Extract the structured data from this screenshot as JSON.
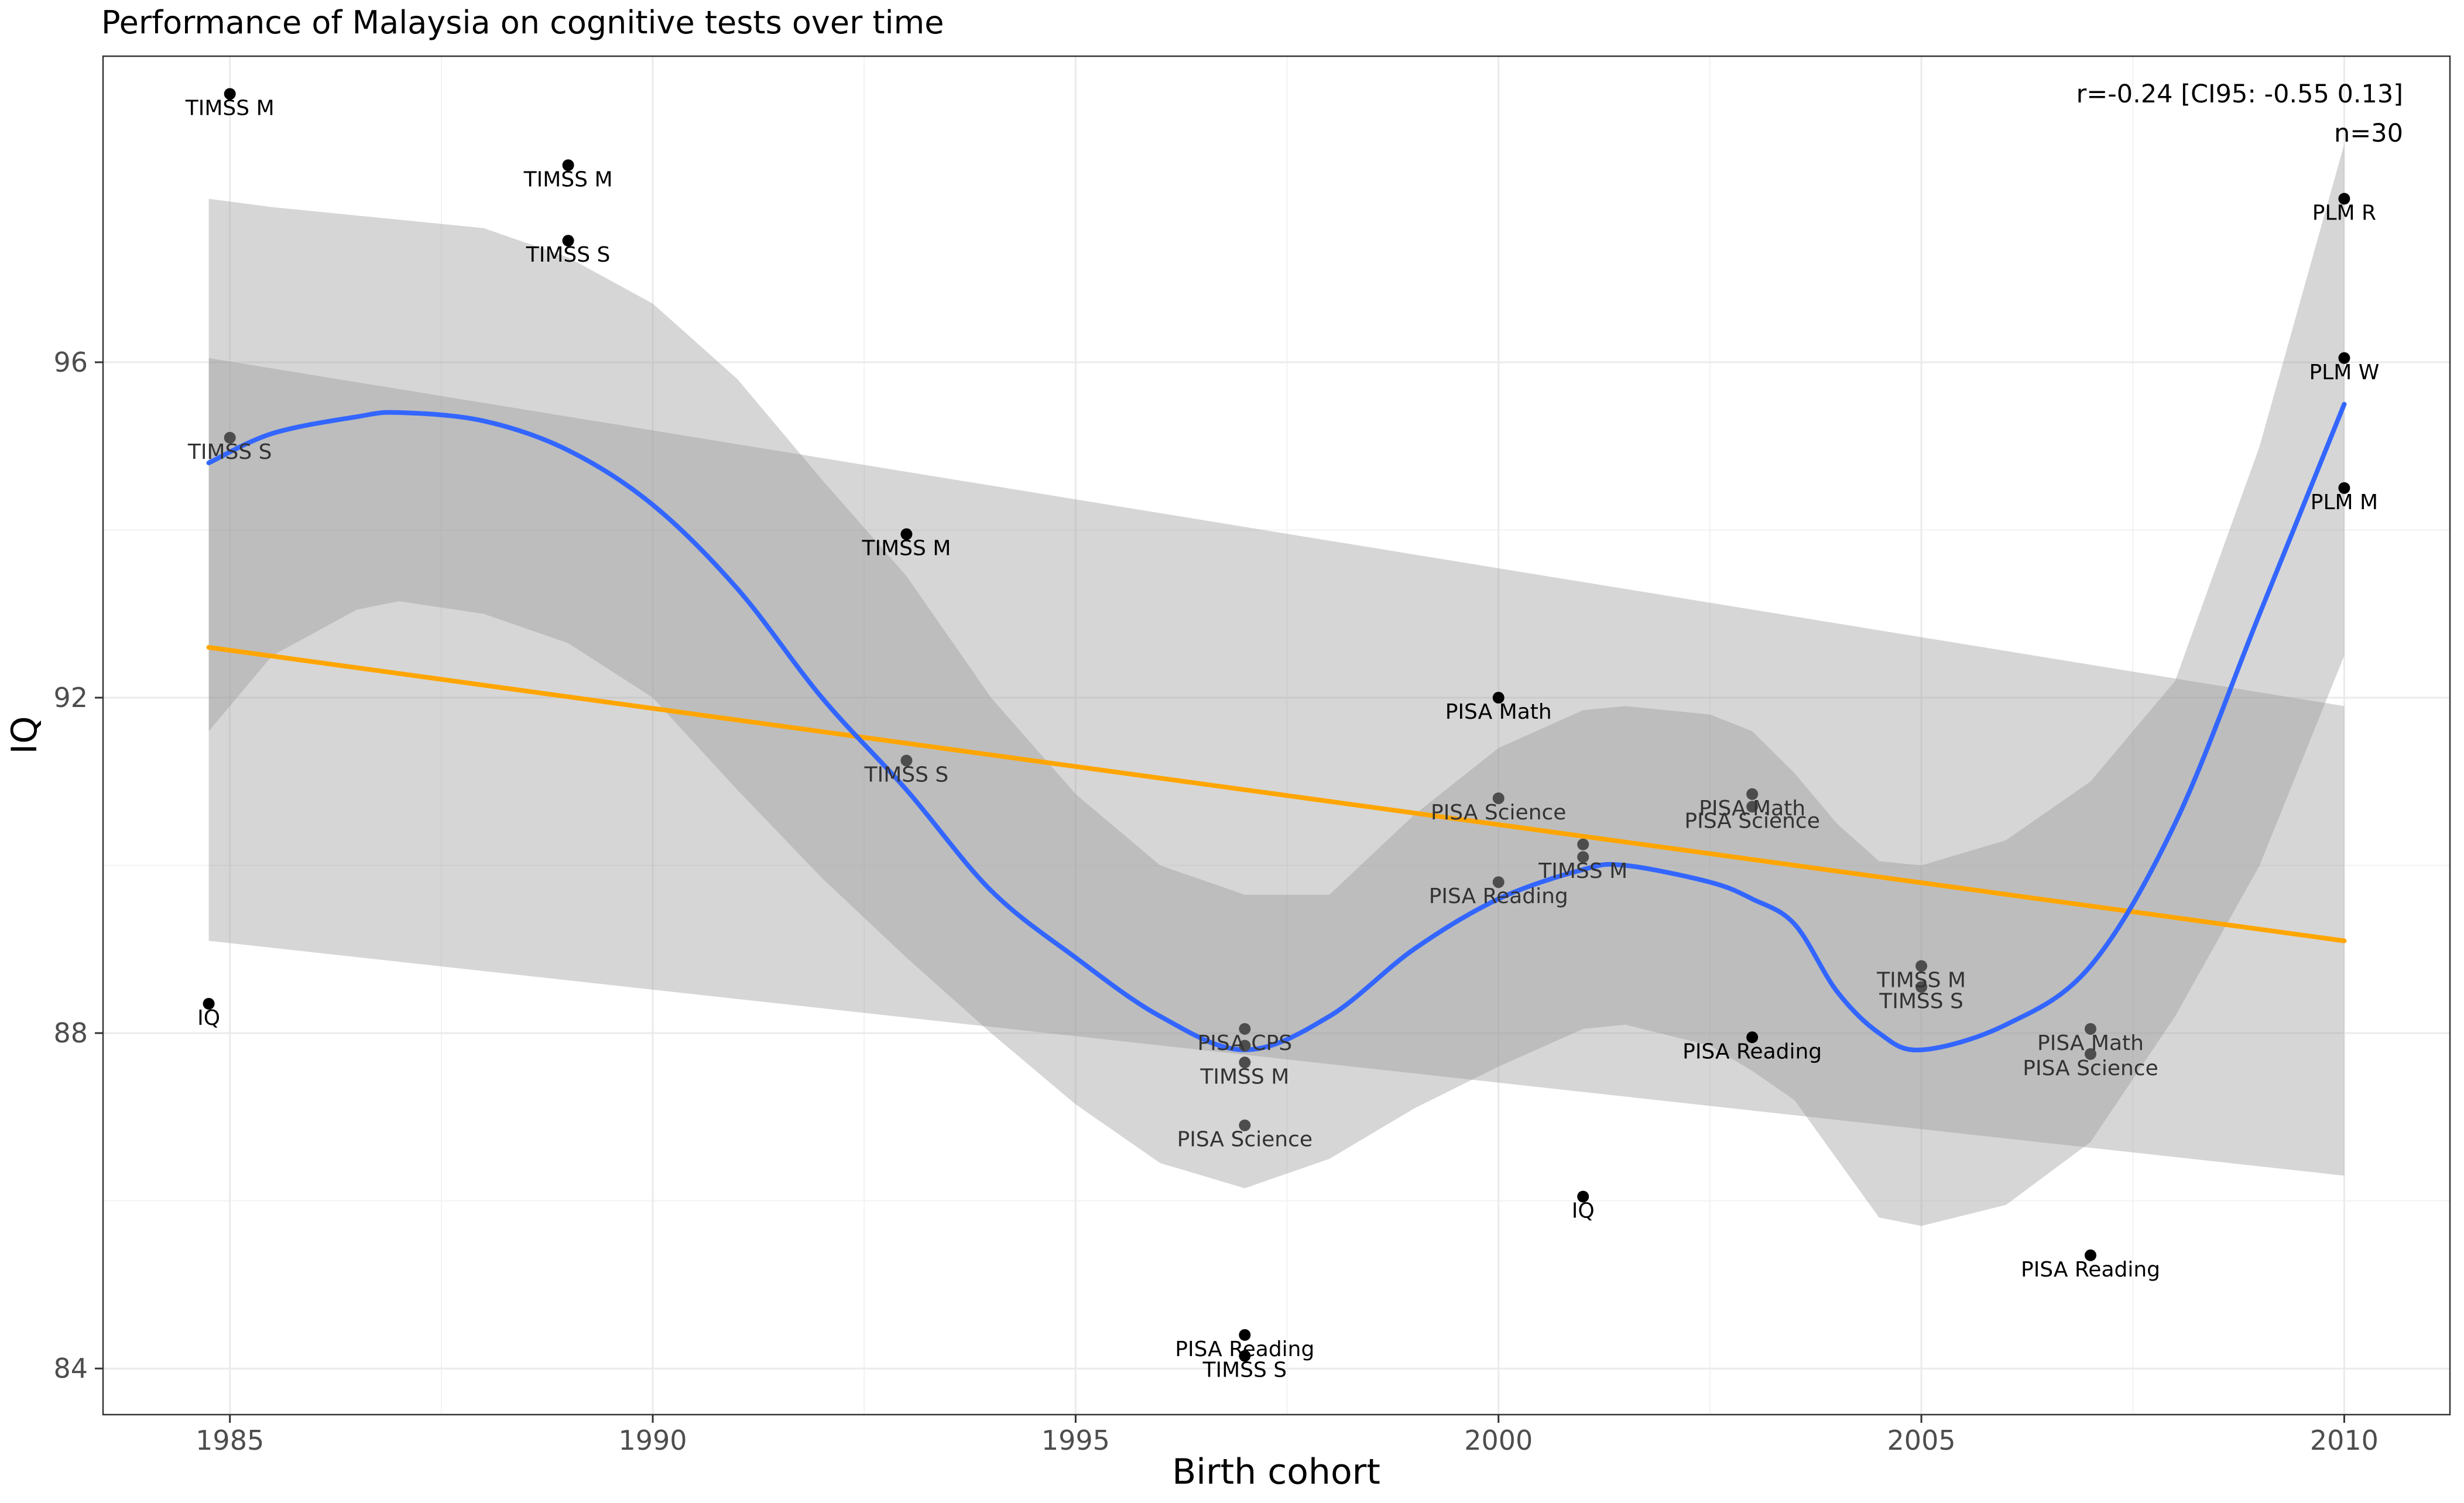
{
  "chart_data": {
    "type": "scatter",
    "title": "Performance of Malaysia on cognitive tests over time",
    "xlabel": "Birth cohort",
    "ylabel": "IQ",
    "xlim": [
      1983.5,
      2011.25
    ],
    "ylim": [
      83.45,
      99.65
    ],
    "x_ticks": [
      1985,
      1990,
      1995,
      2000,
      2005,
      2010
    ],
    "y_ticks": [
      84,
      88,
      92,
      96
    ],
    "grid": true,
    "annotations": [
      "r=-0.24 [CI95: -0.55 0.13]",
      "n=30"
    ],
    "annotation_position": "top-right",
    "points": [
      {
        "x": 1985.0,
        "y": 99.2,
        "label": "TIMSS M",
        "shade": "dark"
      },
      {
        "x": 1985.0,
        "y": 95.1,
        "label": "TIMSS S",
        "shade": "gray"
      },
      {
        "x": 1984.75,
        "y": 88.35,
        "label": "IQ",
        "shade": "dark"
      },
      {
        "x": 1989.0,
        "y": 98.35,
        "label": "TIMSS M",
        "shade": "dark"
      },
      {
        "x": 1989.0,
        "y": 97.45,
        "label": "TIMSS S",
        "shade": "dark"
      },
      {
        "x": 1993.0,
        "y": 93.95,
        "label": "TIMSS M",
        "shade": "dark"
      },
      {
        "x": 1993.0,
        "y": 91.25,
        "label": "TIMSS S",
        "shade": "gray"
      },
      {
        "x": 1997.0,
        "y": 88.05,
        "label": "PISA CPS",
        "shade": "gray"
      },
      {
        "x": 1997.0,
        "y": 87.85,
        "label": "",
        "shade": "gray"
      },
      {
        "x": 1997.0,
        "y": 87.65,
        "label": "TIMSS M",
        "shade": "gray"
      },
      {
        "x": 1997.0,
        "y": 86.9,
        "label": "PISA Science",
        "shade": "gray"
      },
      {
        "x": 1997.0,
        "y": 84.4,
        "label": "PISA Reading",
        "shade": "dark"
      },
      {
        "x": 1997.0,
        "y": 84.15,
        "label": "TIMSS S",
        "shade": "dark"
      },
      {
        "x": 2000.0,
        "y": 92.0,
        "label": "PISA Math",
        "shade": "dark"
      },
      {
        "x": 2000.0,
        "y": 90.8,
        "label": "PISA Science",
        "shade": "gray"
      },
      {
        "x": 2000.0,
        "y": 89.8,
        "label": "PISA Reading",
        "shade": "gray"
      },
      {
        "x": 2001.0,
        "y": 90.25,
        "label": "",
        "shade": "gray"
      },
      {
        "x": 2001.0,
        "y": 90.1,
        "label": "TIMSS M",
        "shade": "gray"
      },
      {
        "x": 2001.0,
        "y": 86.05,
        "label": "IQ",
        "shade": "dark"
      },
      {
        "x": 2003.0,
        "y": 90.85,
        "label": "PISA Math",
        "shade": "gray"
      },
      {
        "x": 2003.0,
        "y": 90.7,
        "label": "PISA Science",
        "shade": "gray"
      },
      {
        "x": 2003.0,
        "y": 87.95,
        "label": "PISA Reading",
        "shade": "dark"
      },
      {
        "x": 2005.0,
        "y": 88.8,
        "label": "TIMSS M",
        "shade": "gray"
      },
      {
        "x": 2005.0,
        "y": 88.55,
        "label": "TIMSS S",
        "shade": "gray"
      },
      {
        "x": 2007.0,
        "y": 88.05,
        "label": "PISA Math",
        "shade": "gray"
      },
      {
        "x": 2007.0,
        "y": 87.75,
        "label": "PISA Science",
        "shade": "gray"
      },
      {
        "x": 2007.0,
        "y": 85.35,
        "label": "PISA Reading",
        "shade": "dark"
      },
      {
        "x": 2010.0,
        "y": 97.95,
        "label": "PLM R",
        "shade": "dark"
      },
      {
        "x": 2010.0,
        "y": 96.05,
        "label": "PLM W",
        "shade": "dark"
      },
      {
        "x": 2010.0,
        "y": 94.5,
        "label": "PLM M",
        "shade": "dark"
      }
    ],
    "series": [
      {
        "type": "line",
        "color": "#ffa500",
        "x": [
          1984.75,
          2010.0
        ],
        "y": [
          92.6,
          89.1
        ],
        "band": {
          "lower": [
            89.1,
            86.3
          ],
          "upper": [
            96.05,
            91.9
          ]
        }
      },
      {
        "type": "smooth",
        "color": "#3366ff",
        "x": [
          1984.75,
          1985.5,
          1986.5,
          1987.0,
          1988.0,
          1989.0,
          1990.0,
          1991.0,
          1992.0,
          1993.0,
          1994.0,
          1995.0,
          1996.0,
          1997.0,
          1998.0,
          1999.0,
          2000.0,
          2001.0,
          2001.5,
          2002.5,
          2003.0,
          2003.5,
          2004.0,
          2004.5,
          2005.0,
          2006.0,
          2007.0,
          2008.0,
          2009.0,
          2010.0
        ],
        "y": [
          94.8,
          95.15,
          95.35,
          95.4,
          95.3,
          94.95,
          94.3,
          93.3,
          92.0,
          90.9,
          89.7,
          88.9,
          88.2,
          87.8,
          88.2,
          89.0,
          89.6,
          89.95,
          90.0,
          89.8,
          89.6,
          89.3,
          88.5,
          88.0,
          87.8,
          88.1,
          88.8,
          90.5,
          93.0,
          95.5
        ],
        "band": {
          "lower": [
            91.6,
            92.5,
            93.05,
            93.15,
            93.0,
            92.65,
            92.0,
            90.9,
            89.85,
            88.9,
            88.0,
            87.15,
            86.45,
            86.15,
            86.5,
            87.1,
            87.6,
            88.05,
            88.1,
            87.85,
            87.55,
            87.2,
            86.5,
            85.8,
            85.7,
            85.95,
            86.7,
            88.2,
            90.0,
            92.5
          ],
          "upper": [
            97.95,
            97.85,
            97.75,
            97.7,
            97.6,
            97.25,
            96.7,
            95.8,
            94.6,
            93.45,
            92.0,
            90.85,
            90.0,
            89.65,
            89.65,
            90.6,
            91.4,
            91.85,
            91.9,
            91.8,
            91.6,
            91.1,
            90.5,
            90.05,
            90.0,
            90.3,
            91.0,
            92.2,
            95.0,
            98.6
          ]
        }
      }
    ]
  }
}
